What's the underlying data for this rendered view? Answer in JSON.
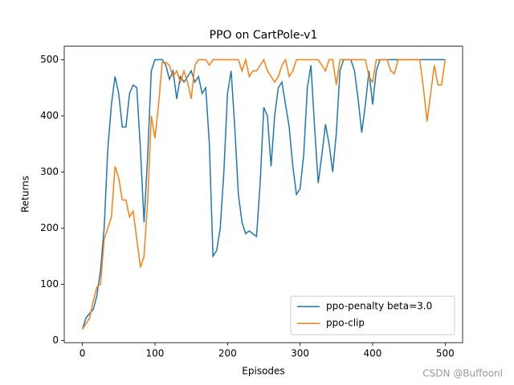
{
  "chart_data": {
    "type": "line",
    "title": "PPO on CartPole-v1",
    "xlabel": "Episodes",
    "ylabel": "Returns",
    "watermark": "CSDN @Buffoonl",
    "x": [
      0,
      5,
      10,
      15,
      20,
      25,
      30,
      35,
      40,
      45,
      50,
      55,
      60,
      65,
      70,
      75,
      80,
      85,
      90,
      95,
      100,
      105,
      110,
      115,
      120,
      125,
      130,
      135,
      140,
      145,
      150,
      155,
      160,
      165,
      170,
      175,
      180,
      185,
      190,
      195,
      200,
      205,
      210,
      215,
      220,
      225,
      230,
      235,
      240,
      245,
      250,
      255,
      260,
      265,
      270,
      275,
      280,
      285,
      290,
      295,
      300,
      305,
      310,
      315,
      320,
      325,
      330,
      335,
      340,
      345,
      350,
      355,
      360,
      365,
      370,
      375,
      380,
      385,
      390,
      395,
      400,
      405,
      410,
      415,
      420,
      425,
      430,
      435,
      440,
      445,
      450,
      455,
      460,
      465,
      470,
      475,
      480,
      485,
      490,
      495,
      500
    ],
    "series": [
      {
        "name": "ppo-penalty beta=3.0",
        "color": "#1f77b4",
        "values": [
          20,
          40,
          48,
          55,
          80,
          125,
          200,
          340,
          420,
          470,
          440,
          380,
          380,
          440,
          455,
          450,
          340,
          210,
          330,
          480,
          500,
          500,
          500,
          490,
          465,
          480,
          430,
          470,
          460,
          470,
          480,
          460,
          470,
          440,
          450,
          350,
          150,
          160,
          200,
          300,
          440,
          480,
          380,
          260,
          210,
          190,
          195,
          190,
          185,
          280,
          415,
          400,
          310,
          400,
          450,
          460,
          420,
          380,
          310,
          260,
          270,
          330,
          450,
          490,
          380,
          280,
          330,
          385,
          350,
          300,
          370,
          480,
          500,
          500,
          500,
          480,
          430,
          370,
          420,
          480,
          420,
          480,
          500,
          500,
          500,
          500,
          500,
          500,
          500,
          500,
          500,
          500,
          500,
          500,
          500,
          500,
          500,
          500,
          500,
          500,
          500
        ]
      },
      {
        "name": "ppo-clip",
        "color": "#ff7f0e",
        "values": [
          20,
          30,
          40,
          70,
          95,
          100,
          180,
          200,
          220,
          310,
          290,
          250,
          250,
          220,
          230,
          180,
          130,
          150,
          250,
          400,
          360,
          420,
          495,
          495,
          490,
          470,
          480,
          460,
          480,
          460,
          430,
          490,
          500,
          500,
          500,
          490,
          500,
          500,
          500,
          500,
          500,
          500,
          500,
          500,
          480,
          500,
          470,
          480,
          480,
          490,
          500,
          480,
          470,
          460,
          470,
          490,
          500,
          470,
          480,
          500,
          500,
          500,
          500,
          500,
          500,
          500,
          490,
          480,
          500,
          500,
          455,
          500,
          500,
          500,
          500,
          500,
          500,
          500,
          500,
          470,
          460,
          500,
          500,
          500,
          500,
          480,
          475,
          500,
          500,
          500,
          500,
          500,
          500,
          500,
          450,
          390,
          440,
          490,
          455,
          455,
          500
        ]
      }
    ],
    "xlim": [
      -25,
      524
    ],
    "ylim": [
      -4,
      524
    ],
    "xticks": [
      0,
      100,
      200,
      300,
      400,
      500
    ],
    "yticks": [
      0,
      100,
      200,
      300,
      400,
      500
    ],
    "grid": false,
    "legend": "lower right"
  }
}
